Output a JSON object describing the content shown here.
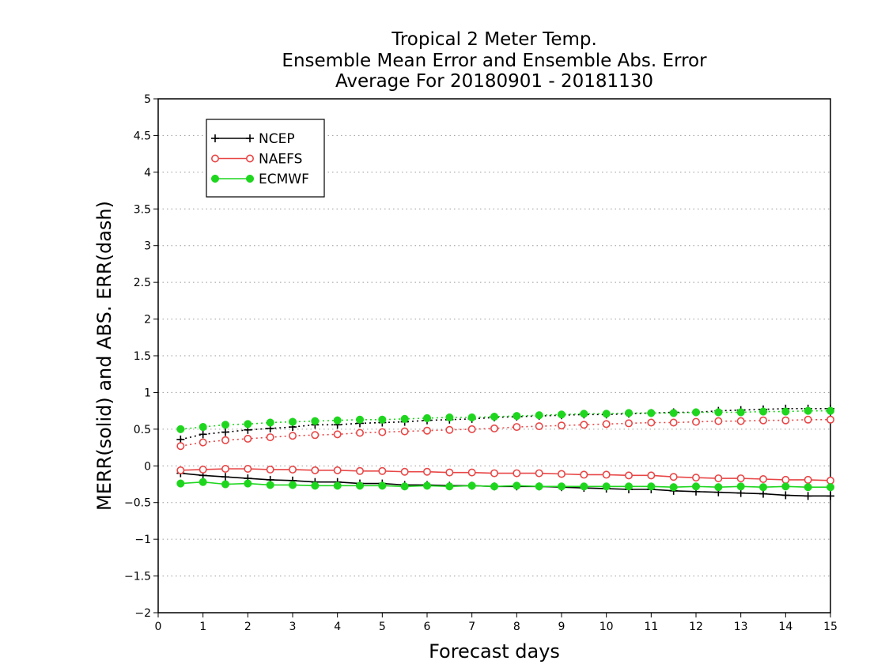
{
  "chart_data": {
    "type": "line",
    "title": [
      "Tropical 2 Meter Temp.",
      "Ensemble Mean Error and Ensemble Abs. Error",
      "Average For 20180901 - 20181130"
    ],
    "xlabel": "Forecast days",
    "ylabel": "MERR(solid) and ABS. ERR(dash)",
    "xlim": [
      0,
      15
    ],
    "ylim": [
      -2,
      5
    ],
    "xticks": [
      "0",
      "1",
      "2",
      "3",
      "4",
      "5",
      "6",
      "7",
      "8",
      "9",
      "10",
      "11",
      "12",
      "13",
      "14",
      "15"
    ],
    "yticks": [
      "5",
      "4.5",
      "4",
      "3.5",
      "3",
      "2.5",
      "2",
      "1.5",
      "1",
      "0.5",
      "0",
      "−0.5",
      "−1",
      "−1.5",
      "−2"
    ],
    "ytick_values": [
      5,
      4.5,
      4,
      3.5,
      3,
      2.5,
      2,
      1.5,
      1,
      0.5,
      0,
      -0.5,
      -1,
      -1.5,
      -2
    ],
    "grid": true,
    "legend_position": "top-left",
    "x": [
      0.5,
      1,
      1.5,
      2,
      2.5,
      3,
      3.5,
      4,
      4.5,
      5,
      5.5,
      6,
      6.5,
      7,
      7.5,
      8,
      8.5,
      9,
      9.5,
      10,
      10.5,
      11,
      11.5,
      12,
      12.5,
      13,
      13.5,
      14,
      14.5,
      15
    ],
    "series": [
      {
        "name": "NCEP",
        "color": "#000000",
        "marker": "plus",
        "mean_error": [
          -0.1,
          -0.13,
          -0.15,
          -0.17,
          -0.19,
          -0.2,
          -0.22,
          -0.22,
          -0.24,
          -0.24,
          -0.26,
          -0.26,
          -0.27,
          -0.27,
          -0.28,
          -0.28,
          -0.28,
          -0.29,
          -0.3,
          -0.31,
          -0.32,
          -0.32,
          -0.34,
          -0.35,
          -0.36,
          -0.37,
          -0.38,
          -0.4,
          -0.41,
          -0.41
        ],
        "abs_error": [
          0.36,
          0.43,
          0.46,
          0.49,
          0.51,
          0.53,
          0.56,
          0.56,
          0.58,
          0.59,
          0.6,
          0.62,
          0.63,
          0.64,
          0.66,
          0.67,
          0.68,
          0.69,
          0.7,
          0.7,
          0.71,
          0.72,
          0.73,
          0.73,
          0.75,
          0.76,
          0.77,
          0.78,
          0.78,
          0.78
        ]
      },
      {
        "name": "NAEFS",
        "color": "#e84646",
        "marker": "open-circle",
        "mean_error": [
          -0.06,
          -0.05,
          -0.04,
          -0.04,
          -0.05,
          -0.05,
          -0.06,
          -0.06,
          -0.07,
          -0.07,
          -0.08,
          -0.08,
          -0.09,
          -0.09,
          -0.1,
          -0.1,
          -0.1,
          -0.11,
          -0.12,
          -0.12,
          -0.13,
          -0.13,
          -0.15,
          -0.16,
          -0.17,
          -0.17,
          -0.18,
          -0.19,
          -0.19,
          -0.2
        ],
        "abs_error": [
          0.27,
          0.32,
          0.35,
          0.37,
          0.39,
          0.41,
          0.42,
          0.43,
          0.45,
          0.46,
          0.47,
          0.48,
          0.49,
          0.5,
          0.51,
          0.53,
          0.54,
          0.55,
          0.56,
          0.57,
          0.58,
          0.59,
          0.59,
          0.6,
          0.61,
          0.61,
          0.62,
          0.62,
          0.63,
          0.63
        ]
      },
      {
        "name": "ECMWF",
        "color": "#1fd61f",
        "marker": "filled-circle",
        "mean_error": [
          -0.24,
          -0.22,
          -0.25,
          -0.24,
          -0.26,
          -0.26,
          -0.27,
          -0.27,
          -0.27,
          -0.27,
          -0.28,
          -0.27,
          -0.28,
          -0.27,
          -0.28,
          -0.27,
          -0.28,
          -0.28,
          -0.28,
          -0.28,
          -0.28,
          -0.28,
          -0.29,
          -0.28,
          -0.29,
          -0.28,
          -0.29,
          -0.28,
          -0.29,
          -0.29
        ],
        "abs_error": [
          0.5,
          0.53,
          0.56,
          0.57,
          0.59,
          0.6,
          0.61,
          0.62,
          0.63,
          0.63,
          0.64,
          0.65,
          0.66,
          0.66,
          0.67,
          0.68,
          0.69,
          0.7,
          0.71,
          0.71,
          0.72,
          0.72,
          0.72,
          0.73,
          0.73,
          0.73,
          0.74,
          0.74,
          0.75,
          0.75
        ]
      }
    ]
  }
}
